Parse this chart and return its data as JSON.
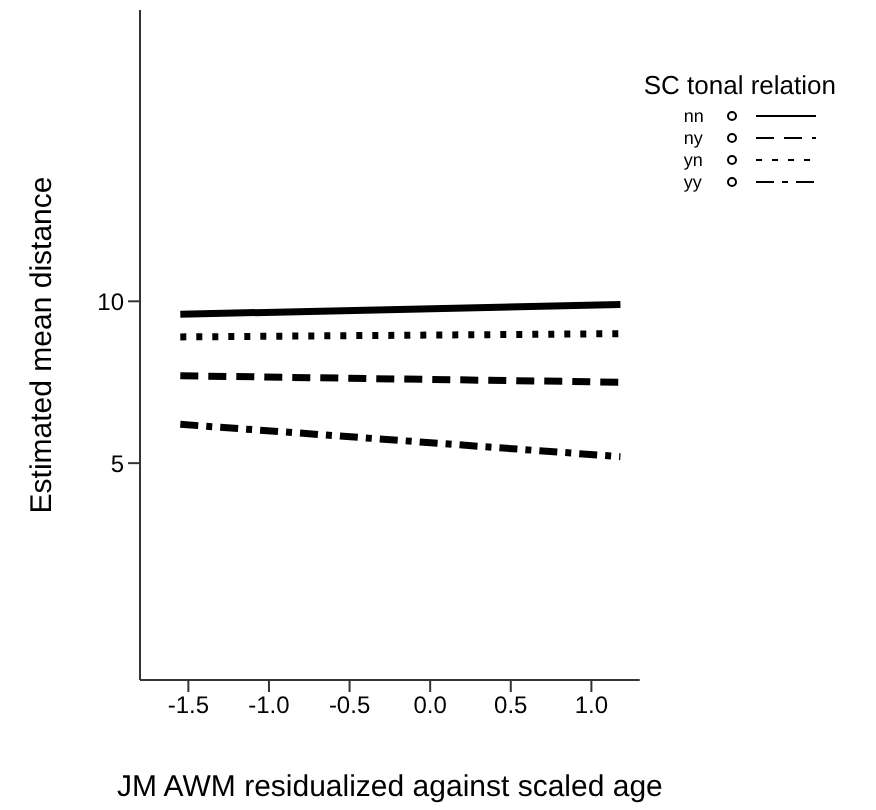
{
  "chart_data": {
    "type": "line",
    "xlabel": "JM AWM residualized against scaled age",
    "ylabel": "Estimated mean distance",
    "legend_title": "SC tonal relation",
    "x": [
      -1.55,
      1.18
    ],
    "series": [
      {
        "name": "nn",
        "color": "#000000",
        "line_style": "solid",
        "values": [
          9.6,
          9.9
        ]
      },
      {
        "name": "ny",
        "color": "#000000",
        "line_style": "dashed",
        "values": [
          7.7,
          7.5
        ]
      },
      {
        "name": "yn",
        "color": "#000000",
        "line_style": "dotted",
        "values": [
          8.9,
          9.0
        ]
      },
      {
        "name": "yy",
        "color": "#000000",
        "line_style": "dashdot",
        "values": [
          6.2,
          5.2
        ]
      }
    ],
    "xlim": [
      -1.8,
      1.3
    ],
    "xticks": [
      -1.5,
      {
        "value": -1,
        "label": "-1.0"
      },
      -0.5,
      {
        "value": 0,
        "label": "0.0"
      },
      0.5,
      {
        "value": 1,
        "label": "1.0"
      }
    ],
    "ylim": [
      -1.7,
      19
    ],
    "yticks": [
      5,
      10
    ],
    "grid": false,
    "legend": "top right"
  }
}
